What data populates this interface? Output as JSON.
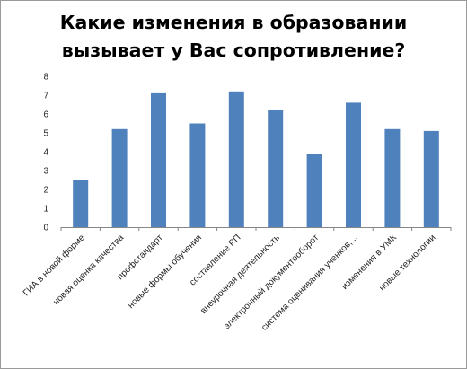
{
  "chart_data": {
    "type": "bar",
    "title_lines": [
      "Какие изменения в образовании",
      "вызывает у Вас сопротивление?"
    ],
    "categories": [
      "ГИА в новой форме",
      "новая оценка качества",
      "профстандарт",
      "новые формы обучения",
      "составление РП",
      "внеурочная деятельность",
      "электронный документооборот",
      "система оценивания ученков,...",
      "изменения в УМК",
      "новые технологии"
    ],
    "values": [
      2.5,
      5.2,
      7.1,
      5.5,
      7.2,
      6.2,
      3.9,
      6.6,
      5.2,
      5.1
    ],
    "ylim": [
      0,
      8
    ],
    "yticks": [
      "0",
      "1",
      "2",
      "3",
      "4",
      "5",
      "6",
      "7",
      "8"
    ],
    "xlabel": "",
    "ylabel": "",
    "legend": "none",
    "grid": false,
    "bar_color": "#4f81bd"
  }
}
